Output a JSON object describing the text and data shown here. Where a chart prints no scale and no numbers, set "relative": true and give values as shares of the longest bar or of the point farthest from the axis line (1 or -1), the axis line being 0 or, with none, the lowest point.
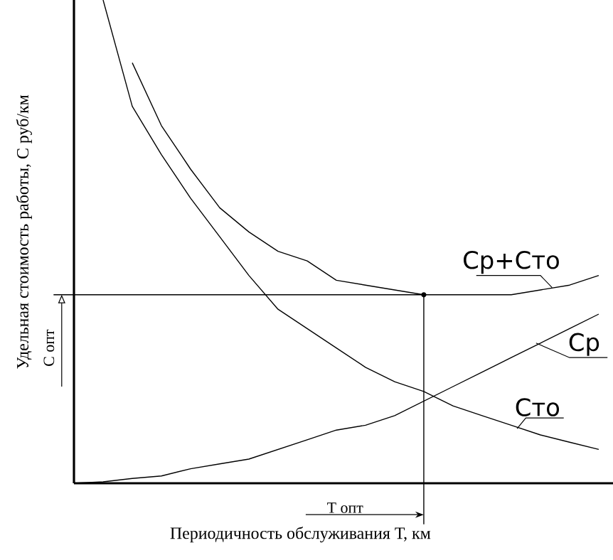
{
  "chart_data": {
    "type": "line",
    "relative": true,
    "xlabel": "Периодичность обслуживания Т, км",
    "ylabel": "Удельная стоимость работы, С руб/км",
    "categories": [
      null,
      null,
      null,
      null,
      null,
      null,
      null,
      null,
      null,
      null,
      null,
      null,
      null,
      null,
      null,
      null,
      null,
      null,
      null
    ],
    "series": [
      {
        "name": "Ср+Сто",
        "color": "#000000",
        "values": [
          null,
          null,
          0.87,
          0.74,
          0.65,
          0.57,
          0.52,
          0.48,
          0.46,
          0.42,
          0.41,
          0.4,
          0.39,
          0.39,
          0.39,
          0.39,
          0.4,
          0.41,
          0.43
        ]
      },
      {
        "name": "Ср",
        "color": "#000000",
        "values": [
          0,
          0.003,
          0.01,
          0.015,
          0.03,
          0.04,
          0.05,
          0.07,
          0.09,
          0.11,
          0.12,
          0.14,
          0.17,
          0.2,
          0.23,
          0.26,
          0.29,
          0.32,
          0.35
        ]
      },
      {
        "name": "Сто",
        "color": "#000000",
        "values": [
          null,
          1,
          0.78,
          0.68,
          0.59,
          0.51,
          0.43,
          0.36,
          0.32,
          0.28,
          0.24,
          0.21,
          0.19,
          0.16,
          0.14,
          0.12,
          0.1,
          0.085,
          0.07
        ]
      }
    ],
    "ref_lines": [
      {
        "axis": "y",
        "value": 0.39,
        "label": "С опт"
      }
    ],
    "annotations": [
      "Т опт"
    ],
    "marker": "none",
    "line_style": "solid"
  }
}
